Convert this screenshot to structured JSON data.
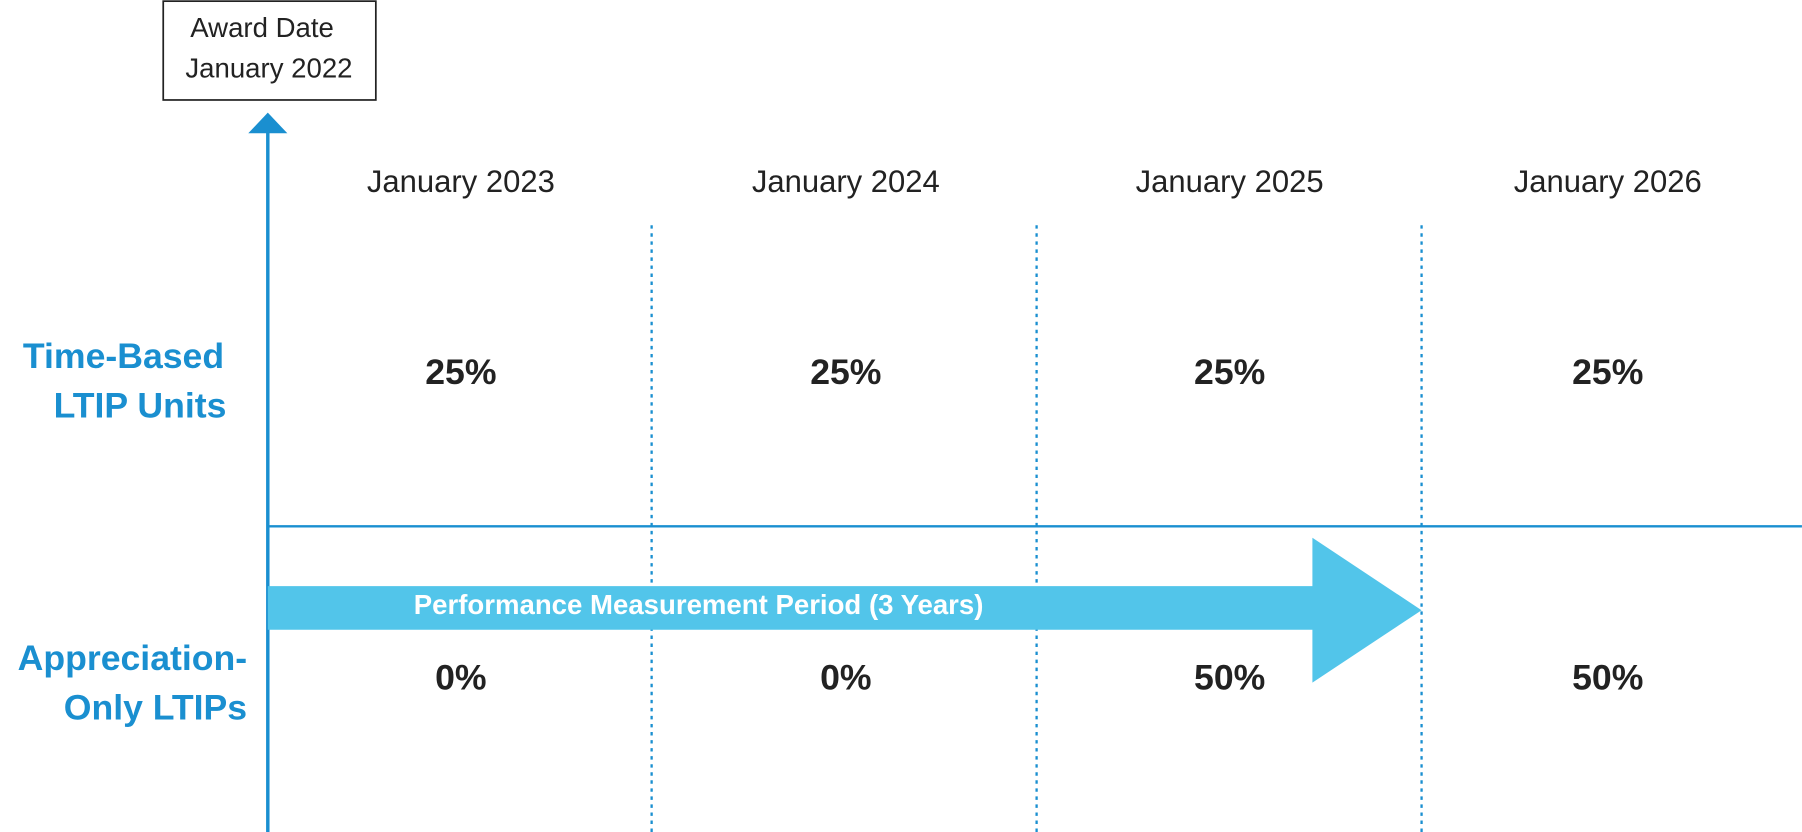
{
  "award": {
    "label": "Award Date",
    "date": "January 2022"
  },
  "columns": [
    "January 2023",
    "January 2024",
    "January 2025",
    "January 2026"
  ],
  "rows": [
    {
      "label": [
        "Time-Based",
        "LTIP Units"
      ],
      "values": [
        "25%",
        "25%",
        "25%",
        "25%"
      ]
    },
    {
      "label": [
        "Appreciation-",
        "Only LTIPs"
      ],
      "values": [
        "0%",
        "0%",
        "50%",
        "50%"
      ]
    }
  ],
  "arrow_label": "Performance Measurement Period (3 Years)"
}
